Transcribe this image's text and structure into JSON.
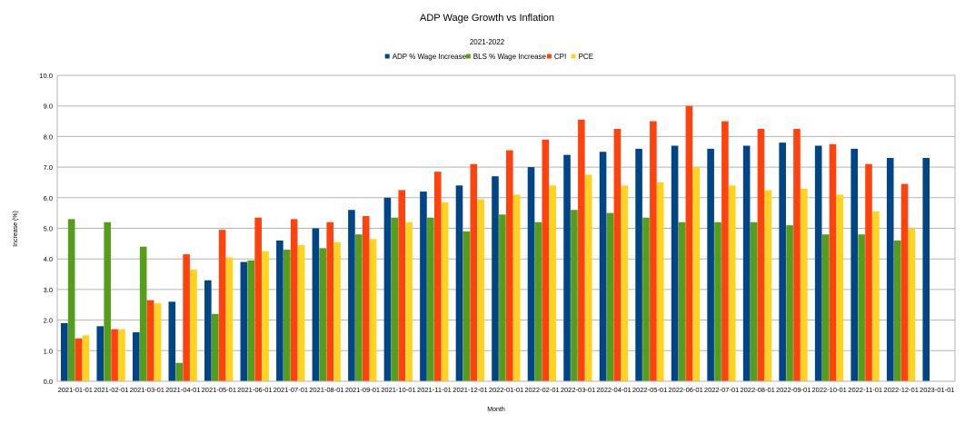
{
  "chart_data": {
    "type": "bar",
    "title": "ADP Wage Growth vs Inflation",
    "subtitle": "2021-2022",
    "xlabel": "Month",
    "ylabel": "Increase (%)",
    "ylim": [
      0,
      10
    ],
    "ytick_step": 1,
    "yticks": [
      "0.0",
      "1.0",
      "2.0",
      "3.0",
      "4.0",
      "5.0",
      "6.0",
      "7.0",
      "8.0",
      "9.0",
      "10.0"
    ],
    "grid": true,
    "legend_position": "top-center",
    "categories": [
      "2021-01-01",
      "2021-02-01",
      "2021-03-01",
      "2021-04-01",
      "2021-05-01",
      "2021-06-01",
      "2021-07-01",
      "2021-08-01",
      "2021-09-01",
      "2021-10-01",
      "2021-11-01",
      "2021-12-01",
      "2022-01-01",
      "2022-02-01",
      "2022-03-01",
      "2022-04-01",
      "2022-05-01",
      "2022-06-01",
      "2022-07-01",
      "2022-08-01",
      "2022-09-01",
      "2022-10-01",
      "2022-11-01",
      "2022-12-01",
      "2023-01-01"
    ],
    "series": [
      {
        "name": "ADP % Wage Increase",
        "color": "#004586",
        "values": [
          1.9,
          1.8,
          1.6,
          2.6,
          3.3,
          3.9,
          4.6,
          5.0,
          5.6,
          6.0,
          6.2,
          6.4,
          6.7,
          7.0,
          7.4,
          7.5,
          7.6,
          7.7,
          7.6,
          7.7,
          7.8,
          7.7,
          7.6,
          7.3,
          7.3
        ]
      },
      {
        "name": "BLS % Wage Increase",
        "color": "#579D1C",
        "values": [
          5.3,
          5.2,
          4.4,
          0.6,
          2.2,
          3.95,
          4.3,
          4.35,
          4.8,
          5.35,
          5.35,
          4.9,
          5.45,
          5.2,
          5.6,
          5.5,
          5.35,
          5.2,
          5.2,
          5.2,
          5.1,
          4.8,
          4.8,
          4.6,
          null
        ]
      },
      {
        "name": "CPI",
        "color": "#FF420E",
        "values": [
          1.4,
          1.7,
          2.65,
          4.15,
          4.95,
          5.35,
          5.3,
          5.2,
          5.4,
          6.25,
          6.85,
          7.1,
          7.55,
          7.9,
          8.55,
          8.25,
          8.5,
          9.0,
          8.5,
          8.25,
          8.25,
          7.75,
          7.1,
          6.45,
          null
        ]
      },
      {
        "name": "PCE",
        "color": "#FFD320",
        "values": [
          1.5,
          1.7,
          2.55,
          3.65,
          4.05,
          4.25,
          4.45,
          4.55,
          4.65,
          5.2,
          5.85,
          5.95,
          6.1,
          6.4,
          6.75,
          6.4,
          6.5,
          7.0,
          6.4,
          6.25,
          6.3,
          6.1,
          5.55,
          5.0,
          null
        ]
      }
    ]
  }
}
